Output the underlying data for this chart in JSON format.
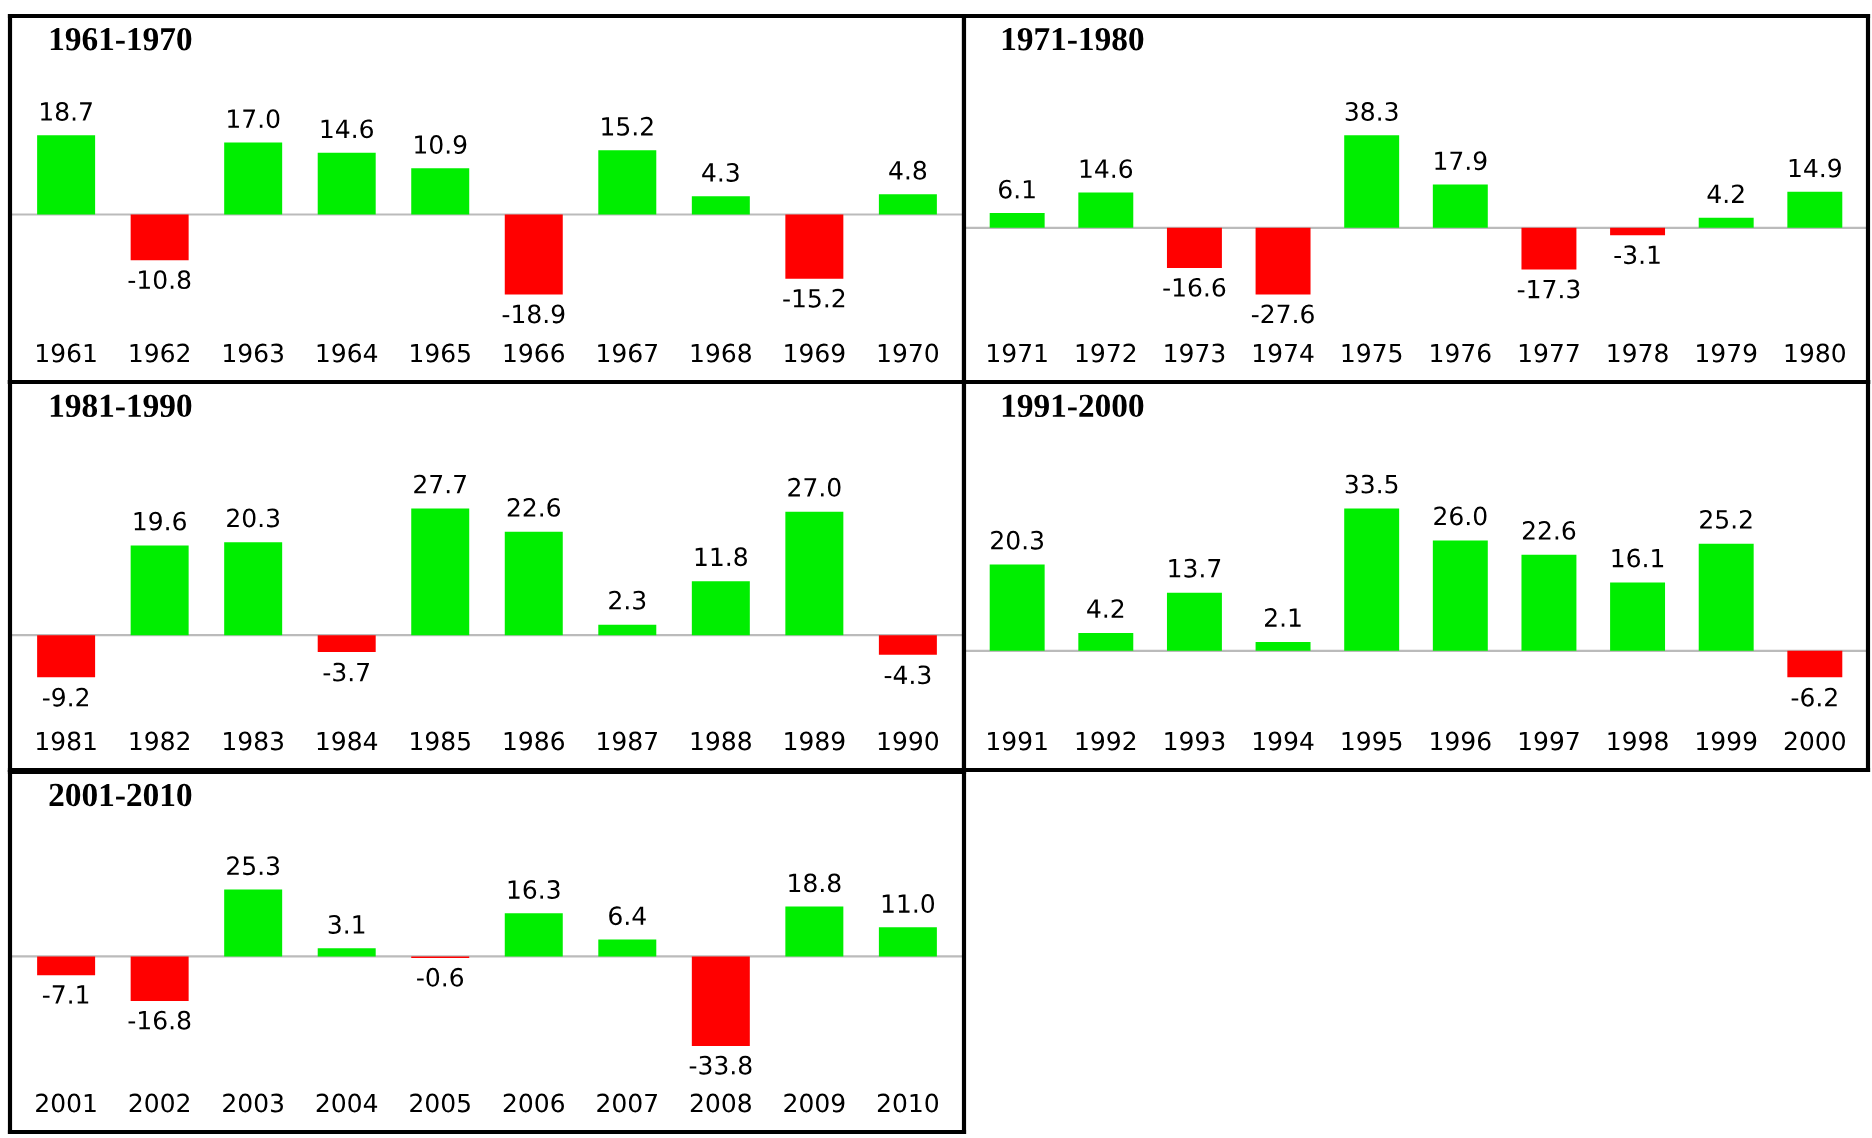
{
  "chart_data": [
    {
      "type": "bar",
      "title": "1961-1970",
      "categories": [
        "1961",
        "1962",
        "1963",
        "1964",
        "1965",
        "1966",
        "1967",
        "1968",
        "1969",
        "1970"
      ],
      "values": [
        18.7,
        -10.8,
        17.0,
        14.6,
        10.9,
        -18.9,
        15.2,
        4.3,
        -15.2,
        4.8
      ],
      "value_labels": [
        "18.7",
        "-10.8",
        "17.0",
        "14.6",
        "10.9",
        "-18.9",
        "15.2",
        "4.3",
        "-15.2",
        "4.8"
      ],
      "colors": [
        "#00ee00",
        "#ff0000",
        "#00ee00",
        "#00ee00",
        "#00ee00",
        "#ff0000",
        "#00ee00",
        "#00ee00",
        "#ff0000",
        "#00ee00"
      ],
      "tick_labels": "x"
    },
    {
      "type": "bar",
      "title": "1971-1980",
      "categories": [
        "1971",
        "1972",
        "1973",
        "1974",
        "1975",
        "1976",
        "1977",
        "1978",
        "1979",
        "1980"
      ],
      "values": [
        6.1,
        14.6,
        -16.6,
        -27.6,
        38.3,
        17.9,
        -17.3,
        -3.1,
        4.2,
        14.9
      ],
      "value_labels": [
        "6.1",
        "14.6",
        "-16.6",
        "-27.6",
        "38.3",
        "17.9",
        "-17.3",
        "-3.1",
        "4.2",
        "14.9"
      ],
      "colors": [
        "#00ee00",
        "#00ee00",
        "#ff0000",
        "#ff0000",
        "#00ee00",
        "#00ee00",
        "#ff0000",
        "#ff0000",
        "#00ee00",
        "#00ee00"
      ],
      "tick_labels": "x"
    },
    {
      "type": "bar",
      "title": "1981-1990",
      "categories": [
        "1981",
        "1982",
        "1983",
        "1984",
        "1985",
        "1986",
        "1987",
        "1988",
        "1989",
        "1990"
      ],
      "values": [
        -9.2,
        19.6,
        20.3,
        -3.7,
        27.7,
        22.6,
        2.3,
        11.8,
        27.0,
        -4.3
      ],
      "value_labels": [
        "-9.2",
        "19.6",
        "20.3",
        "-3.7",
        "27.7",
        "22.6",
        "2.3",
        "11.8",
        "27.0",
        "-4.3"
      ],
      "colors": [
        "#ff0000",
        "#00ee00",
        "#00ee00",
        "#ff0000",
        "#00ee00",
        "#00ee00",
        "#00ee00",
        "#00ee00",
        "#00ee00",
        "#ff0000"
      ],
      "tick_labels": "x"
    },
    {
      "type": "bar",
      "title": "1991-2000",
      "categories": [
        "1991",
        "1992",
        "1993",
        "1994",
        "1995",
        "1996",
        "1997",
        "1998",
        "1999",
        "2000"
      ],
      "values": [
        20.3,
        4.2,
        13.7,
        2.1,
        33.5,
        26.0,
        22.6,
        16.1,
        25.2,
        -6.2
      ],
      "value_labels": [
        "20.3",
        "4.2",
        "13.7",
        "2.1",
        "33.5",
        "26.0",
        "22.6",
        "16.1",
        "25.2",
        "-6.2"
      ],
      "colors": [
        "#00ee00",
        "#00ee00",
        "#00ee00",
        "#00ee00",
        "#00ee00",
        "#00ee00",
        "#00ee00",
        "#00ee00",
        "#00ee00",
        "#ff0000"
      ],
      "tick_labels": "x"
    },
    {
      "type": "bar",
      "title": "2001-2010",
      "categories": [
        "2001",
        "2002",
        "2003",
        "2004",
        "2005",
        "2006",
        "2007",
        "2008",
        "2009",
        "2010"
      ],
      "values": [
        -7.1,
        -16.8,
        25.3,
        3.1,
        -0.6,
        16.3,
        6.4,
        -33.8,
        18.8,
        11.0
      ],
      "value_labels": [
        "-7.1",
        "-16.8",
        "25.3",
        "3.1",
        "-0.6",
        "16.3",
        "6.4",
        "-33.8",
        "18.8",
        "11.0"
      ],
      "colors": [
        "#ff0000",
        "#ff0000",
        "#00ee00",
        "#00ee00",
        "#ff0000",
        "#00ee00",
        "#00ee00",
        "#ff0000",
        "#00ee00",
        "#00ee00"
      ],
      "tick_labels": "x"
    }
  ]
}
